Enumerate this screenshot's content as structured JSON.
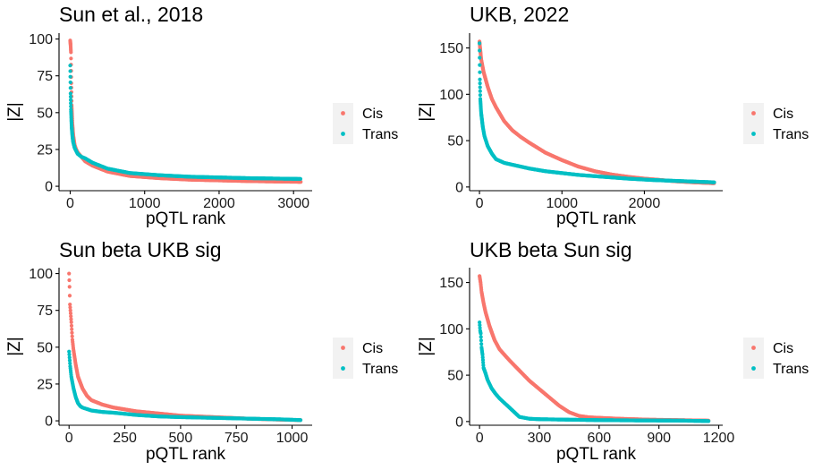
{
  "colors": {
    "cis": "#F8766D",
    "trans": "#00BFC4",
    "legend_key_bg": "#F2F2F2",
    "axis": "#000000"
  },
  "chart_data": [
    {
      "type": "scatter",
      "title": "Sun et al., 2018",
      "xlabel": "pQTL rank",
      "ylabel": "|Z|",
      "xlim": [
        -150,
        3250
      ],
      "ylim": [
        -3,
        104
      ],
      "xticks": [
        0,
        1000,
        2000,
        3000
      ],
      "yticks": [
        0,
        25,
        50,
        75,
        100
      ],
      "legend": [
        "Cis",
        "Trans"
      ],
      "series": [
        {
          "name": "Cis",
          "n": 3100,
          "x": [
            0,
            5,
            10,
            15,
            20,
            30,
            40,
            60,
            80,
            100,
            150,
            200,
            300,
            500,
            800,
            1200,
            1600,
            2000,
            2400,
            2800,
            3100
          ],
          "y": [
            99,
            96,
            91,
            70,
            55,
            42,
            35,
            28,
            25,
            23,
            20,
            17,
            14,
            10,
            7,
            5.5,
            4.5,
            4,
            3.5,
            3.2,
            3
          ]
        },
        {
          "name": "Trans",
          "n": 3100,
          "x": [
            0,
            5,
            10,
            15,
            20,
            30,
            40,
            60,
            80,
            100,
            150,
            200,
            300,
            500,
            800,
            1200,
            1600,
            2000,
            2400,
            2800,
            3100
          ],
          "y": [
            82,
            63,
            52,
            45,
            40,
            34,
            30,
            26,
            24,
            22,
            20,
            19,
            16,
            12,
            9,
            7.5,
            6.5,
            6,
            5.5,
            5.2,
            5
          ]
        }
      ]
    },
    {
      "type": "scatter",
      "title": "UKB, 2022",
      "xlabel": "pQTL rank",
      "ylabel": "|Z|",
      "xlim": [
        -120,
        2950
      ],
      "ylim": [
        -4,
        166
      ],
      "xticks": [
        0,
        1000,
        2000
      ],
      "yticks": [
        0,
        50,
        100,
        150
      ],
      "legend": [
        "Cis",
        "Trans"
      ],
      "series": [
        {
          "name": "Cis",
          "n": 2850,
          "x": [
            0,
            20,
            50,
            100,
            150,
            200,
            300,
            400,
            500,
            600,
            800,
            1000,
            1200,
            1400,
            1600,
            1800,
            2000,
            2200,
            2400,
            2600,
            2850
          ],
          "y": [
            157,
            138,
            124,
            108,
            95,
            86,
            71,
            61,
            54,
            48,
            37,
            29,
            22,
            17,
            13.5,
            11,
            9,
            7.5,
            6,
            5,
            4
          ]
        },
        {
          "name": "Trans",
          "n": 2850,
          "x": [
            0,
            5,
            10,
            20,
            40,
            60,
            100,
            150,
            200,
            300,
            400,
            600,
            800,
            1000,
            1200,
            1500,
            1800,
            2100,
            2400,
            2700,
            2850
          ],
          "y": [
            155,
            116,
            95,
            80,
            65,
            55,
            44,
            36,
            30,
            26,
            24,
            20,
            17,
            15,
            13,
            11,
            9,
            7.5,
            6.5,
            5.5,
            5
          ]
        }
      ]
    },
    {
      "type": "scatter",
      "title": "Sun beta UKB sig",
      "xlabel": "pQTL rank",
      "ylabel": "|Z|",
      "xlim": [
        -45,
        1090
      ],
      "ylim": [
        -3,
        104
      ],
      "xticks": [
        0,
        250,
        500,
        750,
        1000
      ],
      "yticks": [
        0,
        25,
        50,
        75,
        100
      ],
      "legend": [
        "Cis",
        "Trans"
      ],
      "series": [
        {
          "name": "Cis",
          "n": 1040,
          "x": [
            0,
            2,
            4,
            6,
            10,
            15,
            20,
            30,
            40,
            60,
            80,
            100,
            150,
            200,
            300,
            400,
            500,
            650,
            800,
            950,
            1040
          ],
          "y": [
            100,
            91,
            79,
            75,
            67,
            55,
            48,
            38,
            30,
            22,
            17,
            14,
            11,
            9,
            6.5,
            5,
            3.5,
            2.5,
            1.5,
            0.8,
            0.5
          ]
        },
        {
          "name": "Trans",
          "n": 1040,
          "x": [
            0,
            5,
            10,
            15,
            20,
            30,
            40,
            50,
            60,
            80,
            100,
            150,
            200,
            300,
            400,
            500,
            650,
            800,
            950,
            1040
          ],
          "y": [
            47,
            37,
            30,
            26,
            22,
            16,
            12,
            10,
            9,
            8,
            7,
            6,
            5.5,
            4,
            3,
            2.5,
            2,
            1.5,
            1,
            0.5
          ]
        }
      ]
    },
    {
      "type": "scatter",
      "title": "UKB beta Sun sig",
      "xlabel": "pQTL rank",
      "ylabel": "|Z|",
      "xlim": [
        -50,
        1220
      ],
      "ylim": [
        -4,
        166
      ],
      "xticks": [
        0,
        300,
        600,
        900,
        1200
      ],
      "yticks": [
        0,
        50,
        100,
        150
      ],
      "legend": [
        "Cis",
        "Trans"
      ],
      "series": [
        {
          "name": "Cis",
          "n": 1150,
          "x": [
            0,
            5,
            10,
            20,
            30,
            50,
            75,
            100,
            150,
            200,
            250,
            300,
            350,
            400,
            450,
            500,
            550,
            700,
            850,
            1000,
            1150
          ],
          "y": [
            157,
            150,
            140,
            128,
            118,
            103,
            88,
            78,
            66,
            55,
            44,
            35,
            26,
            17,
            10,
            6,
            4.5,
            3,
            2,
            1.5,
            1
          ]
        },
        {
          "name": "Trans",
          "n": 1150,
          "x": [
            0,
            3,
            6,
            10,
            15,
            20,
            30,
            40,
            60,
            80,
            100,
            125,
            150,
            175,
            200,
            250,
            300,
            450,
            600,
            800,
            1000,
            1150
          ],
          "y": [
            107,
            98,
            95,
            80,
            72,
            58,
            52,
            45,
            36,
            30,
            25,
            20,
            15,
            10,
            5,
            3,
            2.5,
            2,
            1.5,
            1.2,
            1,
            0.5
          ]
        }
      ]
    }
  ]
}
